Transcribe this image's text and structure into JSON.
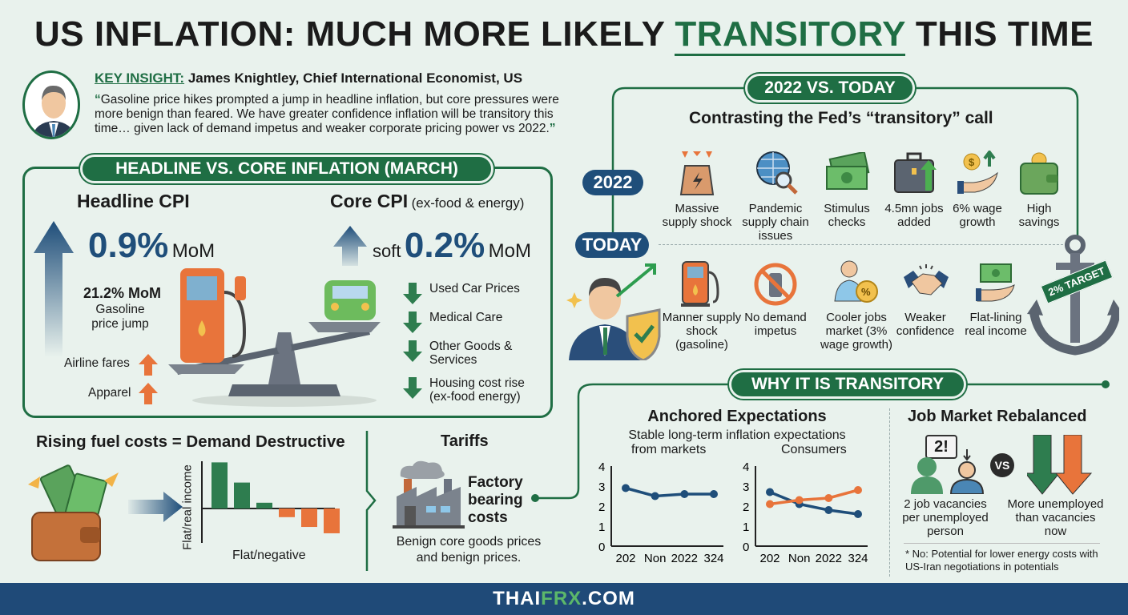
{
  "title": {
    "pre": "US INFLATION: MUCH MORE LIKELY ",
    "accent": "TRANSITORY",
    "post": " THIS TIME"
  },
  "insight": {
    "label": "KEY INSIGHT:",
    "author": "James Knightley, Chief International Economist, US",
    "quote": "Gasoline price hikes prompted a jump in headline inflation, but core pressures were more benign than feared. We have greater confidence inflation will be transitory this time… given lack of demand impetus and weaker corporate pricing power vs 2022."
  },
  "headline_section": {
    "title": "HEADLINE VS. CORE INFLATION (MARCH)",
    "headline": {
      "label": "Headline CPI",
      "value": "0.9%",
      "unit": "MoM",
      "gas_value": "21.2% MoM",
      "gas_label": "Gasoline price jump",
      "up_items": [
        "Airline fares",
        "Apparel"
      ]
    },
    "core": {
      "label": "Core CPI",
      "sub": "(ex-food & energy)",
      "prefix": "soft",
      "value": "0.2%",
      "unit": "MoM",
      "down_items": [
        "Used Car Prices",
        "Medical Care",
        "Other Goods & Services",
        "Housing cost rise (ex-food energy)"
      ]
    }
  },
  "fuel": {
    "title": "Rising fuel costs = Demand Destructive",
    "ylabel": "Flat/real income",
    "xlabel": "Flat/negative"
  },
  "tariffs": {
    "title": "Tariffs",
    "factory": "Factory bearing costs",
    "note": "Benign core goods prices and benign prices."
  },
  "comparison": {
    "title": "2022 VS. TODAY",
    "subtitle": "Contrasting the Fed’s “transitory” call",
    "label_2022": "2022",
    "label_today": "TODAY",
    "items_2022": [
      "Massive supply shock",
      "Pandemic supply chain issues",
      "Stimulus checks",
      "4.5mn jobs added",
      "6% wage growth",
      "High savings"
    ],
    "items_today": [
      "Manner supply shock (gasoline)",
      "No demand impetus",
      "Cooler jobs market (3% wage growth)",
      "Weaker confidence",
      "Flat-lining real income"
    ],
    "anchor_label": "2% TARGET"
  },
  "why": {
    "title": "WHY IT IS TRANSITORY",
    "anchored": {
      "title": "Anchored Expectations",
      "subtitle": "Stable long-term inflation expectations",
      "left_label": "from markets",
      "right_label": "Consumers"
    },
    "jobs": {
      "title": "Job Market Rebalanced",
      "badge": "2!",
      "vs": "VS",
      "left": "2 job vacancies per unemployed person",
      "right": "More unemployed than vacancies now"
    },
    "footnote": "* No: Potential for lower energy costs with US-Iran negotiations in potentials"
  },
  "footer": {
    "pre": "THAI",
    "accent": "FRX",
    "post": ".COM"
  },
  "colors": {
    "green": "#1f6e44",
    "navy": "#1f4e7a",
    "orange": "#e8743b",
    "bg": "#e9f2ed"
  },
  "chart_data": [
    {
      "type": "bar",
      "title": "Rising fuel costs = Demand Destructive",
      "ylabel": "Flat/real income",
      "xlabel": "Flat/negative",
      "values": [
        8,
        4.5,
        1,
        -1.5,
        -3.2,
        -4.3
      ]
    },
    {
      "type": "line",
      "title": "from markets",
      "categories": [
        "202",
        "Non",
        "2022",
        "324"
      ],
      "ylim": [
        0,
        4
      ],
      "yticks": [
        "0",
        "1",
        "2",
        "3",
        "4"
      ],
      "series": [
        {
          "name": "markets",
          "color": "#1f4e7a",
          "values": [
            2.9,
            2.5,
            2.6,
            2.6
          ]
        }
      ]
    },
    {
      "type": "line",
      "title": "Consumers",
      "categories": [
        "202",
        "Non",
        "2022",
        "324"
      ],
      "ylim": [
        0,
        4
      ],
      "yticks": [
        "0",
        "1",
        "2",
        "3",
        "4"
      ],
      "series": [
        {
          "name": "consumers-a",
          "color": "#1f4e7a",
          "values": [
            2.7,
            2.1,
            1.8,
            1.6
          ]
        },
        {
          "name": "consumers-b",
          "color": "#e8743b",
          "values": [
            2.1,
            2.3,
            2.4,
            2.8
          ]
        }
      ]
    }
  ]
}
